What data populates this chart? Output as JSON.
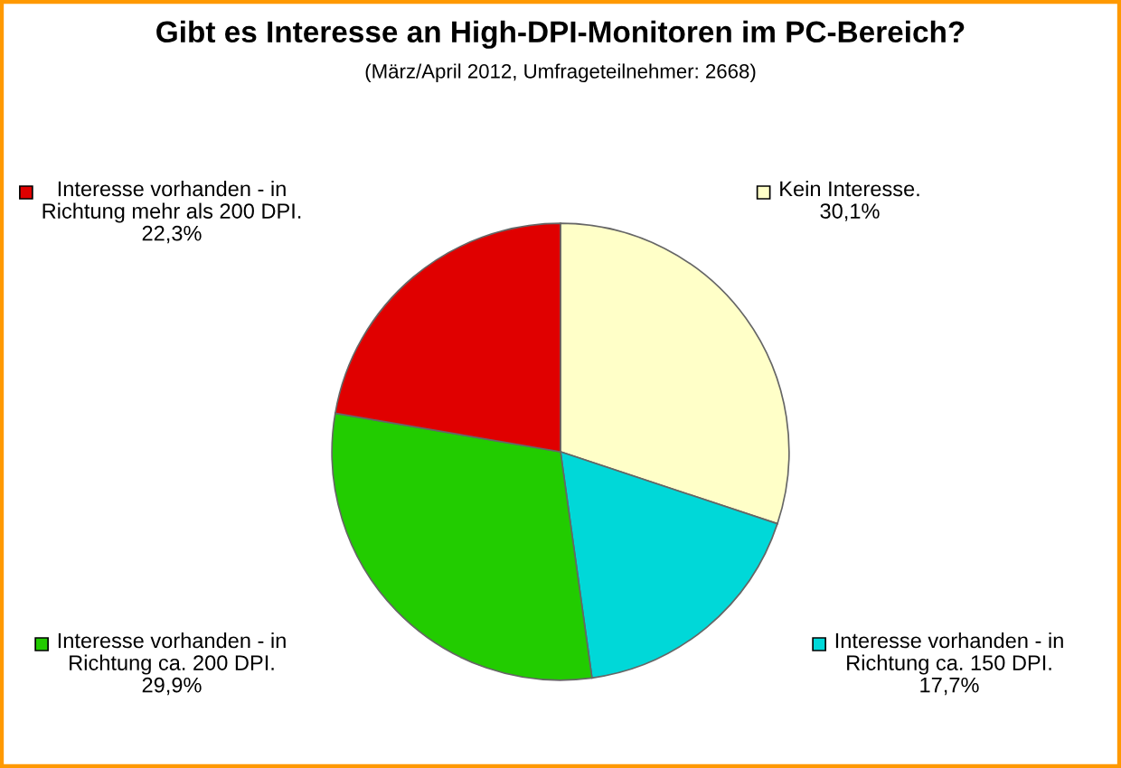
{
  "chart_data": {
    "type": "pie",
    "title": "Gibt es Interesse an High-DPI-Monitoren im PC-Bereich?",
    "subtitle": "(März/April 2012, Umfrageteilnehmer: 2668)",
    "categories": [
      "Kein Interesse.",
      "Interesse vorhanden - in\nRichtung ca. 150 DPI.",
      "Interesse vorhanden - in\nRichtung ca. 200 DPI.",
      "Interesse vorhanden - in\nRichtung mehr als 200 DPI."
    ],
    "values": [
      30.1,
      17.7,
      29.9,
      22.3
    ],
    "value_labels": [
      "30,1%",
      "17,7%",
      "29,9%",
      "22,3%"
    ],
    "legend": "top left",
    "colors": [
      "#ffffc8",
      "#00d8d8",
      "#22cc00",
      "#e00000"
    ]
  }
}
